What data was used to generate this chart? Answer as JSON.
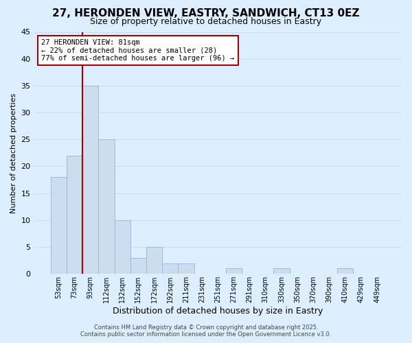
{
  "title": "27, HERONDEN VIEW, EASTRY, SANDWICH, CT13 0EZ",
  "subtitle": "Size of property relative to detached houses in Eastry",
  "xlabel": "Distribution of detached houses by size in Eastry",
  "ylabel": "Number of detached properties",
  "bar_labels": [
    "53sqm",
    "73sqm",
    "93sqm",
    "112sqm",
    "132sqm",
    "152sqm",
    "172sqm",
    "192sqm",
    "211sqm",
    "231sqm",
    "251sqm",
    "271sqm",
    "291sqm",
    "310sqm",
    "330sqm",
    "350sqm",
    "370sqm",
    "390sqm",
    "410sqm",
    "429sqm",
    "449sqm"
  ],
  "bar_values": [
    18,
    22,
    35,
    25,
    10,
    3,
    5,
    2,
    2,
    0,
    0,
    1,
    0,
    0,
    1,
    0,
    0,
    0,
    1,
    0,
    0
  ],
  "bar_color": "#ccddf0",
  "bar_edge_color": "#99bbdd",
  "grid_color": "#ccddf0",
  "background_color": "#ddeeff",
  "annotation_title": "27 HERONDEN VIEW: 81sqm",
  "annotation_line1": "← 22% of detached houses are smaller (28)",
  "annotation_line2": "77% of semi-detached houses are larger (96) →",
  "annotation_box_color": "#ffffff",
  "annotation_border_color": "#aa0000",
  "footer_line1": "Contains HM Land Registry data © Crown copyright and database right 2025.",
  "footer_line2": "Contains public sector information licensed under the Open Government Licence v3.0.",
  "ylim": [
    0,
    45
  ],
  "yticks": [
    0,
    5,
    10,
    15,
    20,
    25,
    30,
    35,
    40,
    45
  ],
  "title_fontsize": 11,
  "subtitle_fontsize": 9,
  "red_line_index": 1.5
}
